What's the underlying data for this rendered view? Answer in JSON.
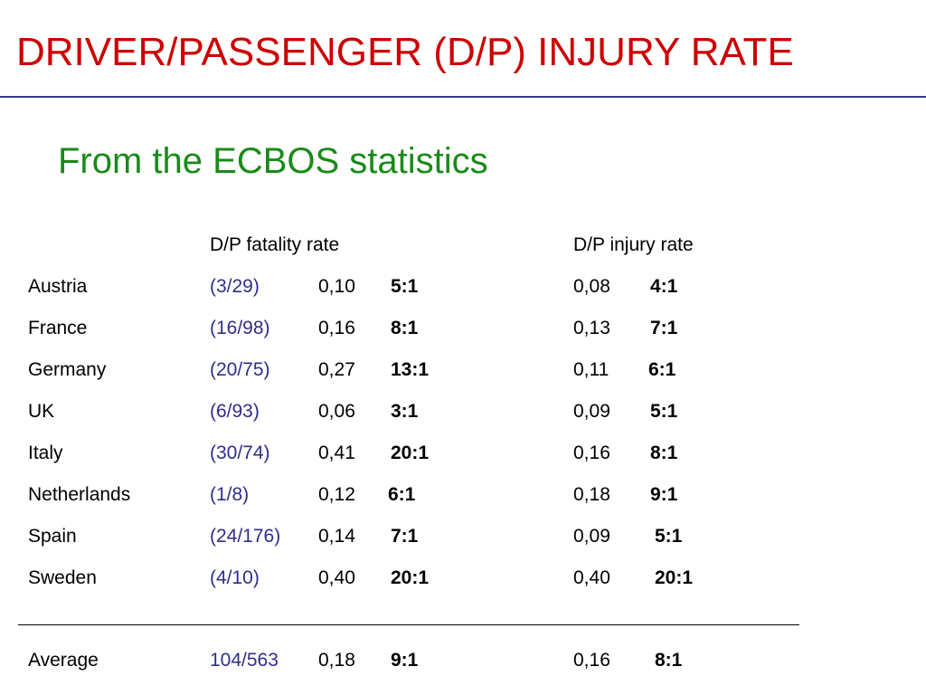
{
  "slide": {
    "title": "DRIVER/PASSENGER (D/P) INJURY RATE",
    "subtitle": "From the ECBOS statistics"
  },
  "table": {
    "headers": {
      "fatality": "D/P fatality rate",
      "injury": "D/P injury rate"
    },
    "rows": [
      {
        "country": "Austria",
        "fraction": "(3/29)",
        "fatality_rate": "0,10",
        "fatality_ratio": "5:1",
        "injury_rate": "0,08",
        "injury_ratio": "4:1"
      },
      {
        "country": "France",
        "fraction": "(16/98)",
        "fatality_rate": "0,16",
        "fatality_ratio": "8:1",
        "injury_rate": "0,13",
        "injury_ratio": "7:1"
      },
      {
        "country": "Germany",
        "fraction": "(20/75)",
        "fatality_rate": "0,27",
        "fatality_ratio": "13:1",
        "injury_rate": "0,11",
        "injury_ratio": "6:1"
      },
      {
        "country": "UK",
        "fraction": "(6/93)",
        "fatality_rate": "0,06",
        "fatality_ratio": "3:1",
        "injury_rate": "0,09",
        "injury_ratio": "5:1"
      },
      {
        "country": "Italy",
        "fraction": "(30/74)",
        "fatality_rate": "0,41",
        "fatality_ratio": "20:1",
        "injury_rate": "0,16",
        "injury_ratio": "8:1"
      },
      {
        "country": "Netherlands",
        "fraction": "(1/8)",
        "fatality_rate": "0,12",
        "fatality_ratio": "6:1",
        "injury_rate": "0,18",
        "injury_ratio": "9:1"
      },
      {
        "country": "Spain",
        "fraction": "(24/176)",
        "fatality_rate": "0,14",
        "fatality_ratio": "7:1",
        "injury_rate": "0,09",
        "injury_ratio": "5:1"
      },
      {
        "country": "Sweden",
        "fraction": "(4/10)",
        "fatality_rate": "0,40",
        "fatality_ratio": "20:1",
        "injury_rate": "0,40",
        "injury_ratio": "20:1"
      }
    ],
    "average": {
      "country": "Average",
      "fraction": "104/563",
      "fatality_rate": "0,18",
      "fatality_ratio": "9:1",
      "injury_rate": "0,16",
      "injury_ratio": "8:1"
    }
  },
  "colors": {
    "title": "#cc0000",
    "subtitle": "#1a8a1a",
    "fraction": "#2e2e8c",
    "rule": "#3a3a8c"
  }
}
